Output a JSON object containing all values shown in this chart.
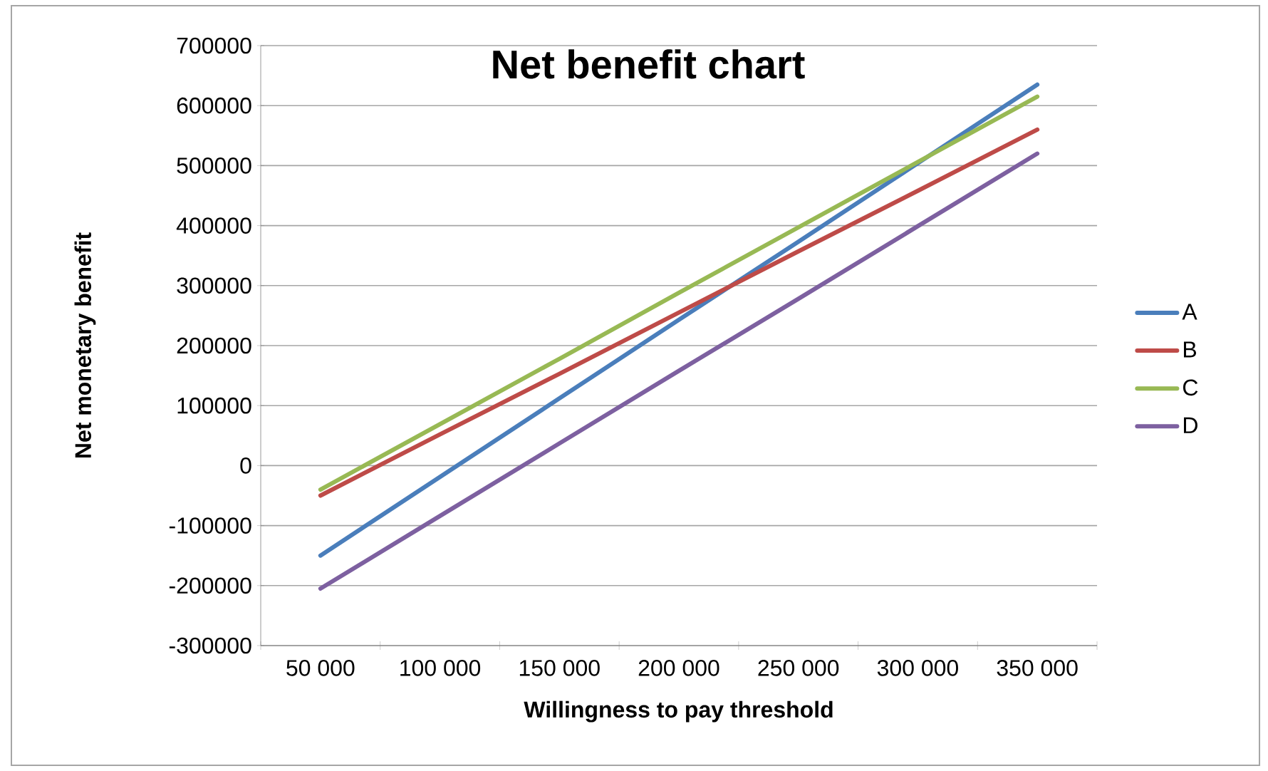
{
  "chart_data": {
    "type": "line",
    "title": "Net benefit chart",
    "xlabel": "Willingness to pay threshold",
    "ylabel": "Net monetary benefit",
    "categories": [
      "50 000",
      "100 000",
      "150 000",
      "200 000",
      "250 000",
      "300 000",
      "350 000"
    ],
    "series": [
      {
        "name": "A",
        "color": "#4a7ebb",
        "values": [
          -150000,
          -19000,
          112000,
          243000,
          373000,
          504000,
          635000
        ]
      },
      {
        "name": "B",
        "color": "#be4b48",
        "values": [
          -50000,
          52000,
          153000,
          255000,
          357000,
          458000,
          560000
        ]
      },
      {
        "name": "C",
        "color": "#98b954",
        "values": [
          -40000,
          69000,
          178000,
          288000,
          397000,
          506000,
          615000
        ]
      },
      {
        "name": "D",
        "color": "#7d60a0",
        "values": [
          -205000,
          -84000,
          37000,
          158000,
          278000,
          399000,
          520000
        ]
      }
    ],
    "ylim": [
      -300000,
      700000
    ],
    "yticks": [
      -300000,
      -200000,
      -100000,
      0,
      100000,
      200000,
      300000,
      400000,
      500000,
      600000,
      700000
    ],
    "grid": "y",
    "legend": "right",
    "marker": "none",
    "line_style": "solid"
  }
}
